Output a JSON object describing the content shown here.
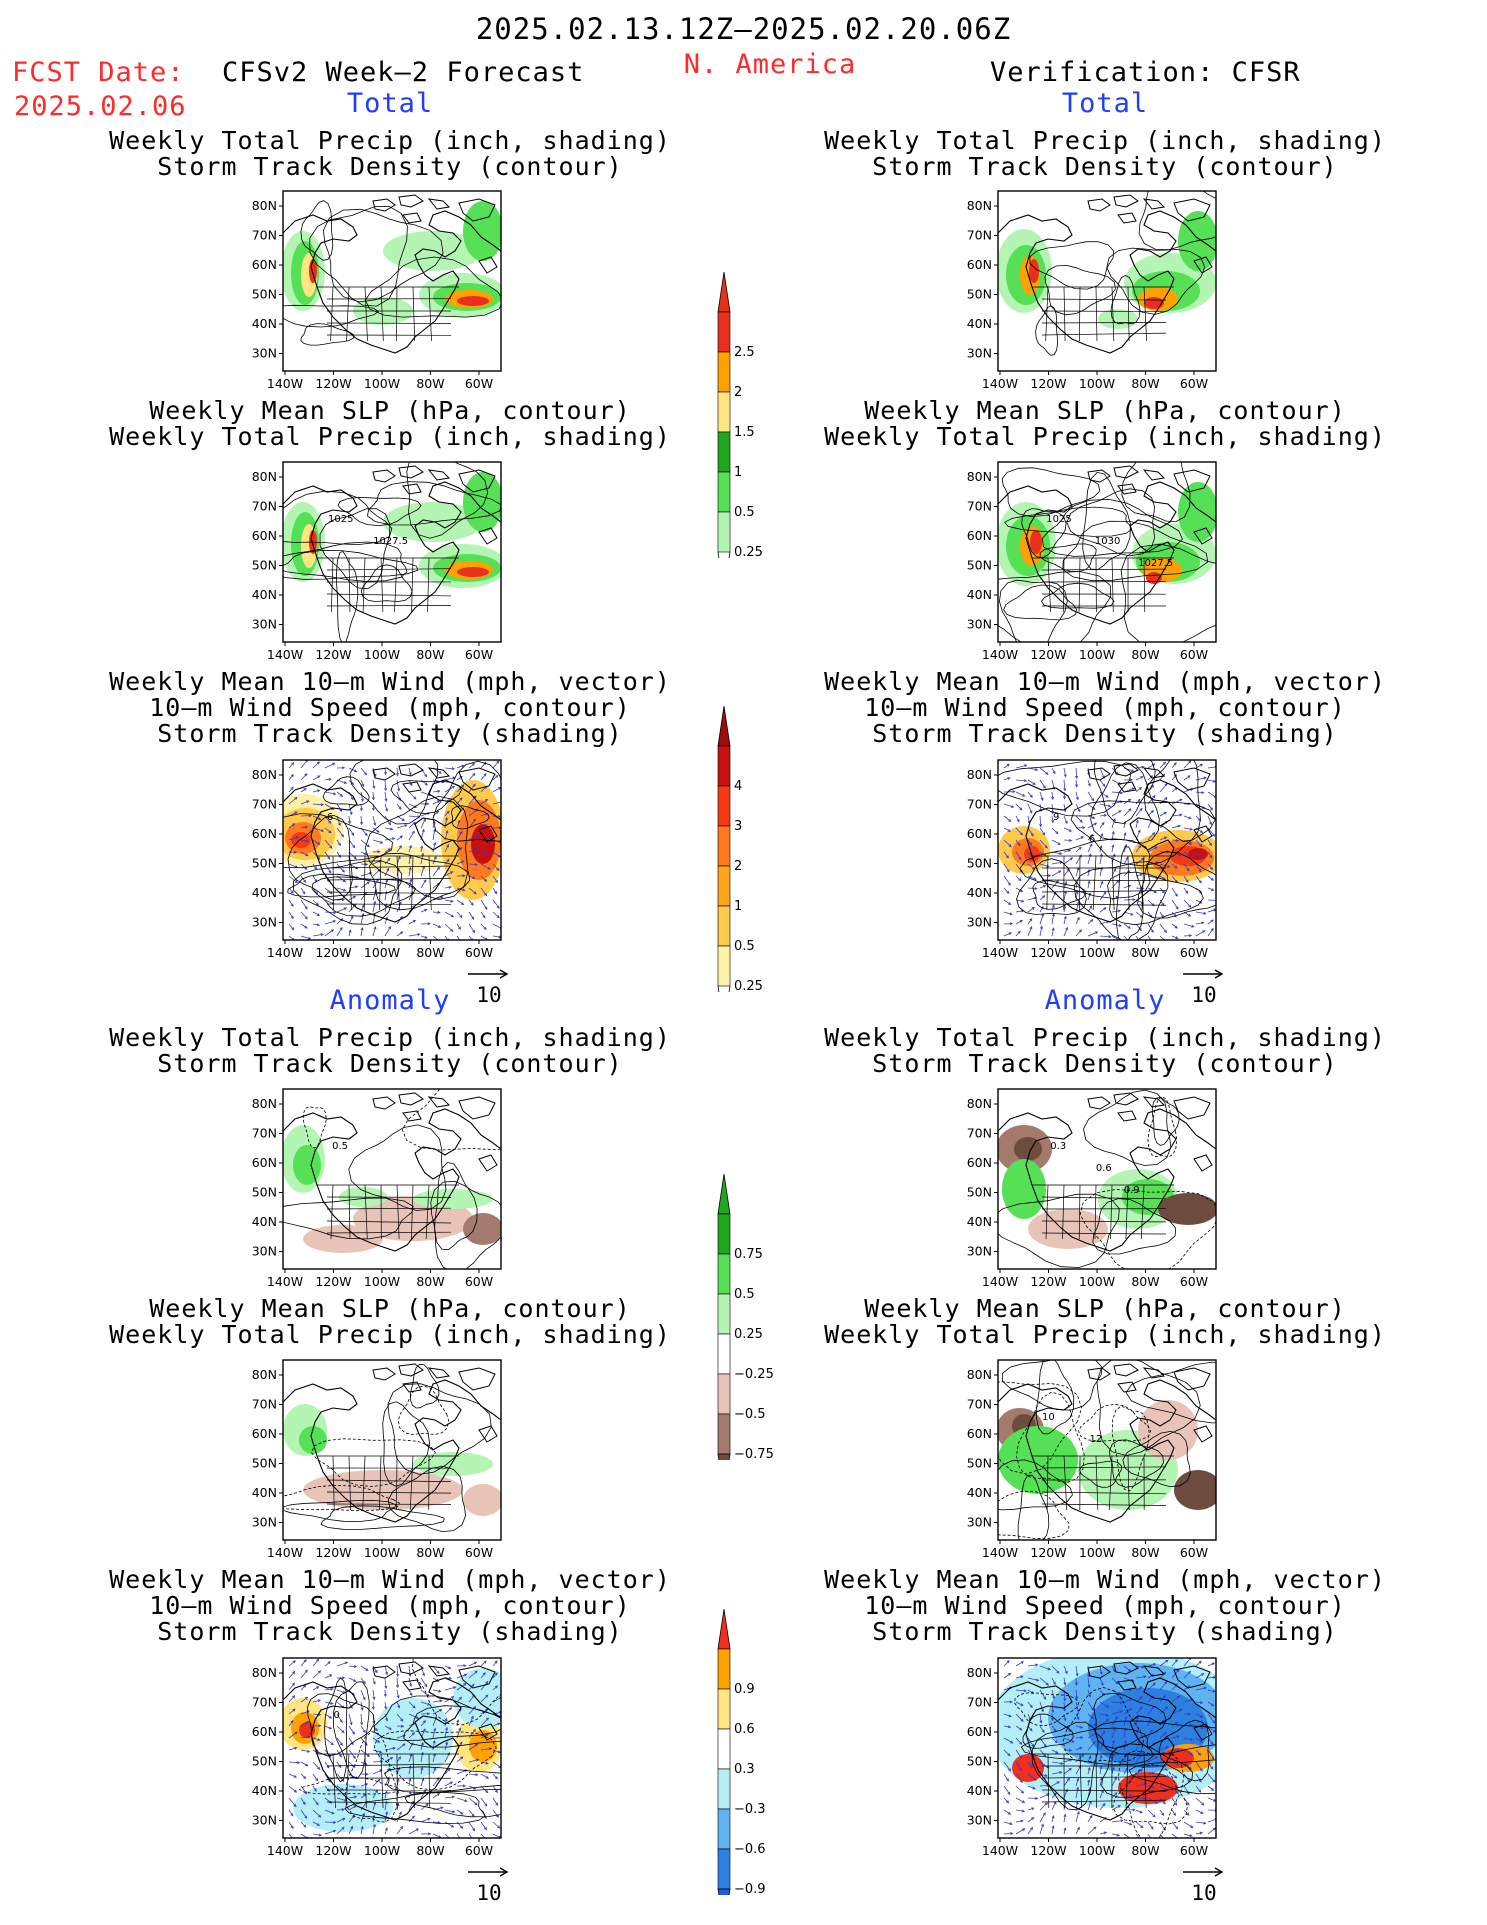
{
  "header": {
    "date_range": "2025.02.13.12Z—2025.02.20.06Z",
    "fcst_label": "FCST Date:",
    "fcst_date": "2025.02.06",
    "forecast_title": "CFSv2 Week—2 Forecast",
    "region": "N. America",
    "verification": "Verification: CFSR"
  },
  "sections": {
    "total": "Total",
    "anomaly": "Anomaly"
  },
  "titles": {
    "precip_storm": [
      "Weekly Total Precip (inch, shading)",
      "Storm Track Density (contour)"
    ],
    "slp_precip": [
      "Weekly Mean SLP (hPa, contour)",
      "Weekly Total Precip (inch, shading)"
    ],
    "wind_storm": [
      "Weekly Mean 10—m Wind (mph, vector)",
      "10—m Wind Speed (mph, contour)",
      "Storm Track Density (shading)"
    ]
  },
  "map_axes": {
    "lat_labels": [
      "80N",
      "70N",
      "60N",
      "50N",
      "40N",
      "30N"
    ],
    "lon_labels": [
      "140W",
      "120W",
      "100W",
      "80W",
      "60W"
    ]
  },
  "vector_reference": "10",
  "contour_labels": {
    "fc_total_slp": [
      "1025",
      "1027.5"
    ],
    "vf_total_slp": [
      "1025",
      "1030",
      "1027.5"
    ],
    "fc_anom_precip": [
      "0.5"
    ],
    "vf_anom_precip": [
      "0.3",
      "0.6",
      "0.9"
    ],
    "vf_anom_slp": [
      "10",
      "12"
    ],
    "fc_anom_wind": [
      "0"
    ],
    "vf_total_wind": [
      "9",
      "6"
    ],
    "fc_total_wind": [
      "6"
    ]
  },
  "colorbars": [
    {
      "name": "total-precip",
      "labels": [
        "2.5",
        "2",
        "1.5",
        "1",
        "0.5",
        "0.25"
      ],
      "colors": [
        "#e8301c",
        "#ffa200",
        "#ffe680",
        "#1fa81f",
        "#55e055",
        "#b4f5b4"
      ],
      "top": "#e8301c",
      "bottom": null
    },
    {
      "name": "total-storm-density",
      "labels": [
        "4",
        "3",
        "2",
        "1",
        "0.5",
        "0.25"
      ],
      "colors": [
        "#c81010",
        "#f53a14",
        "#ff7a1f",
        "#ffa51a",
        "#ffc94a",
        "#fff1a6"
      ],
      "top": "#9e0c0c",
      "bottom": null
    },
    {
      "name": "anomaly-precip",
      "labels": [
        "0.75",
        "0.5",
        "0.25",
        "−0.25",
        "−0.5",
        "−0.75"
      ],
      "colors": [
        "#1fa81f",
        "#55e055",
        "#b4f5b4",
        "#ffffff",
        "#e8c4b8",
        "#a37a6c"
      ],
      "top": "#1fa81f",
      "bottom": "#6e4b3f"
    },
    {
      "name": "anomaly-storm-density",
      "labels": [
        "0.9",
        "0.6",
        "0.3",
        "−0.3",
        "−0.6",
        "−0.9"
      ],
      "colors": [
        "#ffa200",
        "#ffe680",
        "#ffffff",
        "#b4eef7",
        "#5eb4f0",
        "#2b80e0"
      ],
      "top": "#f0301c",
      "bottom": "#1c5ed8"
    }
  ]
}
